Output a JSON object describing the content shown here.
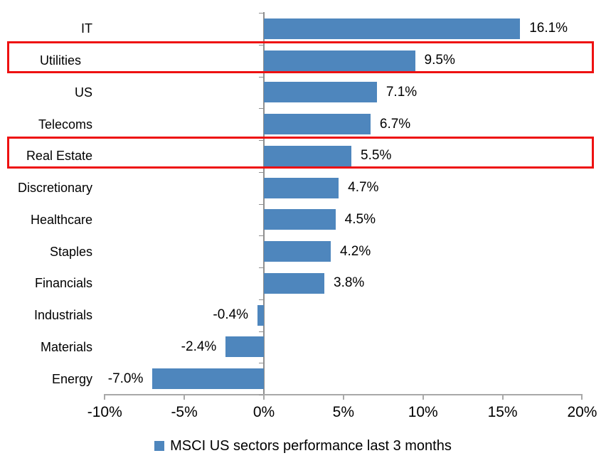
{
  "chart_data": {
    "type": "bar",
    "orientation": "horizontal",
    "title": "",
    "xlabel": "",
    "ylabel": "",
    "categories": [
      "IT",
      "Utilities",
      "US",
      "Telecoms",
      "Real Estate",
      "Discretionary",
      "Healthcare",
      "Staples",
      "Financials",
      "Industrials",
      "Materials",
      "Energy"
    ],
    "values": [
      16.1,
      9.5,
      7.1,
      6.7,
      5.5,
      4.7,
      4.5,
      4.2,
      3.8,
      -0.4,
      -2.4,
      -7.0
    ],
    "data_labels": [
      "16.1%",
      "9.5%",
      "7.1%",
      "6.7%",
      "5.5%",
      "4.7%",
      "4.5%",
      "4.2%",
      "3.8%",
      "-0.4%",
      "-2.4%",
      "-7.0%"
    ],
    "highlighted_categories": [
      "Utilities",
      "Real Estate"
    ],
    "xlim": [
      -10,
      20
    ],
    "x_ticks": [
      {
        "value": -10,
        "label": "-10%"
      },
      {
        "value": -5,
        "label": "-5%"
      },
      {
        "value": 0,
        "label": "0%"
      },
      {
        "value": 5,
        "label": "5%"
      },
      {
        "value": 10,
        "label": "10%"
      },
      {
        "value": 15,
        "label": "15%"
      },
      {
        "value": 20,
        "label": "20%"
      }
    ],
    "grid": false,
    "legend_position": "bottom-center",
    "legend": {
      "label": "MSCI US sectors performance last 3 months",
      "marker_color": "#4e86bd"
    },
    "bar_color": "#4e86bd",
    "highlight_box_color": "#ee1111",
    "category_axis_color": "#8f8f8f",
    "value_axis_color": "#a8a8a8"
  }
}
